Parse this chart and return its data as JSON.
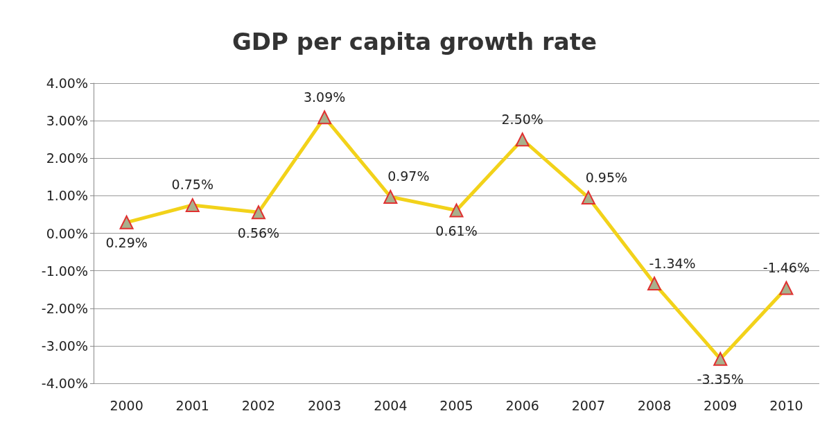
{
  "chart_data": {
    "type": "line",
    "title": "GDP per capita growth rate",
    "categories": [
      "2000",
      "2001",
      "2002",
      "2003",
      "2004",
      "2005",
      "2006",
      "2007",
      "2008",
      "2009",
      "2010"
    ],
    "series": [
      {
        "color": "#f2d21a",
        "values": [
          0.29,
          0.75,
          0.56,
          3.09,
          0.97,
          0.61,
          2.5,
          0.95,
          -1.34,
          -3.35,
          -1.46
        ],
        "value_labels": [
          "0.29%",
          "0.75%",
          "0.56%",
          "3.09%",
          "0.97%",
          "0.61%",
          "2.50%",
          "0.95%",
          "-1.34%",
          "-3.35%",
          "-1.46%"
        ]
      }
    ],
    "ylim": [
      -4,
      4
    ],
    "yticks": [
      {
        "value": -4,
        "label": "-4.00%"
      },
      {
        "value": -3,
        "label": "-3.00%"
      },
      {
        "value": -2,
        "label": "-2.00%"
      },
      {
        "value": -1,
        "label": "-1.00%"
      },
      {
        "value": 0,
        "label": "0.00%"
      },
      {
        "value": 1,
        "label": "1.00%"
      },
      {
        "value": 2,
        "label": "2.00%"
      },
      {
        "value": 3,
        "label": "3.00%"
      },
      {
        "value": 4,
        "label": "4.00%"
      }
    ],
    "grid": "y",
    "marker": "triangle",
    "line_style": "solid"
  }
}
